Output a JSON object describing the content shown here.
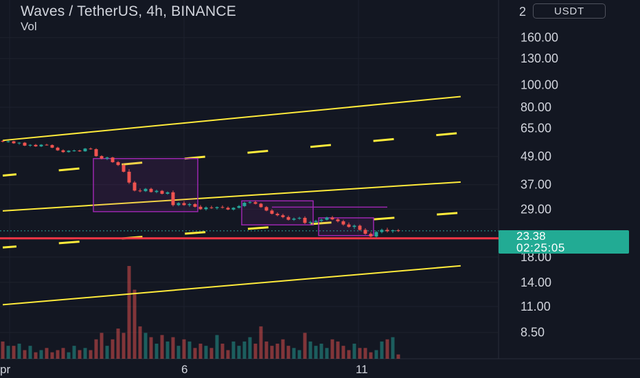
{
  "header": {
    "title": "Waves / TetherUS, 4h, BINANCE",
    "vol_label": "Vol",
    "corner_digit": "2"
  },
  "currency_button": "USDT",
  "price_tag": {
    "price": "23.38",
    "countdown": "02:25:05"
  },
  "colors": {
    "background": "#131722",
    "up": "#26a69a",
    "down": "#ef5350",
    "channel": "#ffeb3b",
    "box": "#9c27b0",
    "support": "#f23645"
  },
  "chart_data": {
    "type": "candlestick",
    "scale": "log",
    "ylim": [
      7.5,
      210
    ],
    "y_ticks": [
      "160.00",
      "130.00",
      "100.00",
      "80.00",
      "65.00",
      "49.00",
      "37.00",
      "29.00",
      "18.00",
      "14.00",
      "11.00",
      "8.50"
    ],
    "y_tick_values": [
      160,
      130,
      100,
      80,
      65,
      49,
      37,
      29,
      18,
      14,
      11,
      8.5
    ],
    "x_ticks": [
      "pr",
      "6",
      "11"
    ],
    "last_price": 23.38,
    "support_level": 21.7,
    "current_price_line": 23.38,
    "candles_ohlc": [
      [
        57.2,
        57.6,
        56.4,
        56.8
      ],
      [
        56.8,
        57.4,
        56.2,
        57.0
      ],
      [
        57.0,
        57.3,
        55.6,
        55.9
      ],
      [
        55.9,
        56.5,
        55.1,
        56.2
      ],
      [
        56.2,
        56.6,
        54.3,
        54.6
      ],
      [
        54.6,
        55.4,
        54.0,
        55.0
      ],
      [
        55.0,
        55.5,
        53.9,
        54.2
      ],
      [
        54.2,
        55.4,
        53.8,
        55.1
      ],
      [
        55.1,
        55.6,
        54.6,
        54.9
      ],
      [
        54.9,
        55.3,
        53.2,
        53.5
      ],
      [
        53.5,
        54.0,
        51.8,
        52.1
      ],
      [
        52.1,
        52.6,
        50.8,
        51.2
      ],
      [
        51.2,
        52.2,
        50.9,
        51.9
      ],
      [
        51.9,
        52.5,
        51.4,
        52.0
      ],
      [
        52.0,
        52.4,
        51.3,
        51.6
      ],
      [
        51.6,
        53.3,
        51.4,
        53.0
      ],
      [
        53.0,
        53.6,
        52.4,
        52.7
      ],
      [
        52.7,
        53.2,
        48.8,
        49.2
      ],
      [
        49.2,
        49.6,
        47.6,
        48.0
      ],
      [
        48.0,
        48.9,
        47.3,
        48.5
      ],
      [
        48.5,
        48.8,
        46.0,
        46.3
      ],
      [
        46.3,
        46.8,
        44.6,
        45.0
      ],
      [
        45.0,
        45.6,
        41.8,
        42.1
      ],
      [
        42.1,
        43.2,
        37.3,
        37.8
      ],
      [
        37.8,
        38.4,
        34.6,
        34.9
      ],
      [
        34.9,
        35.6,
        34.3,
        34.7
      ],
      [
        34.7,
        35.8,
        34.4,
        35.5
      ],
      [
        35.5,
        35.9,
        34.2,
        34.4
      ],
      [
        34.4,
        35.2,
        34.0,
        34.8
      ],
      [
        34.8,
        35.1,
        33.6,
        33.8
      ],
      [
        33.8,
        34.6,
        33.5,
        34.3
      ],
      [
        34.3,
        34.9,
        29.8,
        30.2
      ],
      [
        30.2,
        31.1,
        29.9,
        30.8
      ],
      [
        30.8,
        31.4,
        30.0,
        30.2
      ],
      [
        30.2,
        30.9,
        29.7,
        30.5
      ],
      [
        30.5,
        30.8,
        29.5,
        29.7
      ],
      [
        29.7,
        30.2,
        28.8,
        29.0
      ],
      [
        29.0,
        29.8,
        28.6,
        29.5
      ],
      [
        29.5,
        30.0,
        29.1,
        29.3
      ],
      [
        29.3,
        29.8,
        28.9,
        29.6
      ],
      [
        29.6,
        30.1,
        29.2,
        29.4
      ],
      [
        29.4,
        29.8,
        28.7,
        28.9
      ],
      [
        28.9,
        29.6,
        28.6,
        29.4
      ],
      [
        29.4,
        30.2,
        29.2,
        29.9
      ],
      [
        29.9,
        31.2,
        29.6,
        30.9
      ],
      [
        30.9,
        31.5,
        30.6,
        31.1
      ],
      [
        31.1,
        31.6,
        30.4,
        30.6
      ],
      [
        30.6,
        30.9,
        29.4,
        29.6
      ],
      [
        29.6,
        29.9,
        28.4,
        28.6
      ],
      [
        28.6,
        29.0,
        27.5,
        27.7
      ],
      [
        27.7,
        28.1,
        27.0,
        27.3
      ],
      [
        27.3,
        27.7,
        26.5,
        26.8
      ],
      [
        26.8,
        27.2,
        25.9,
        26.1
      ],
      [
        26.1,
        26.7,
        25.8,
        26.4
      ],
      [
        26.4,
        26.9,
        26.1,
        26.6
      ],
      [
        26.6,
        27.0,
        25.0,
        25.3
      ],
      [
        25.3,
        25.8,
        24.9,
        25.5
      ],
      [
        25.5,
        26.1,
        25.2,
        25.8
      ],
      [
        25.8,
        26.4,
        25.5,
        26.1
      ],
      [
        26.1,
        26.9,
        25.9,
        26.7
      ],
      [
        26.7,
        27.1,
        26.0,
        26.2
      ],
      [
        26.2,
        26.6,
        25.4,
        25.7
      ],
      [
        25.7,
        26.1,
        24.6,
        24.9
      ],
      [
        24.9,
        25.4,
        24.1,
        24.3
      ],
      [
        24.3,
        24.9,
        23.8,
        24.6
      ],
      [
        24.6,
        24.9,
        23.4,
        23.6
      ],
      [
        23.6,
        24.0,
        22.5,
        22.7
      ],
      [
        22.7,
        23.1,
        21.9,
        22.1
      ],
      [
        22.1,
        23.4,
        21.8,
        23.1
      ],
      [
        23.1,
        23.9,
        22.8,
        23.6
      ],
      [
        23.6,
        24.1,
        23.0,
        23.3
      ],
      [
        23.3,
        23.7,
        22.9,
        23.5
      ],
      [
        23.5,
        23.8,
        23.1,
        23.38
      ]
    ],
    "volume": [
      8,
      6,
      6,
      7,
      4,
      6,
      3,
      4,
      5,
      3,
      4,
      5,
      3,
      6,
      4,
      5,
      4,
      9,
      12,
      6,
      9,
      14,
      12,
      43,
      32,
      15,
      12,
      10,
      7,
      11,
      8,
      10,
      6,
      9,
      8,
      5,
      7,
      6,
      5,
      11,
      7,
      4,
      8,
      6,
      8,
      10,
      7,
      15,
      8,
      6,
      7,
      9,
      6,
      5,
      4,
      12,
      8,
      6,
      7,
      5,
      9,
      8,
      6,
      4,
      7,
      5,
      5,
      3,
      4,
      8,
      9,
      10,
      2
    ],
    "drawings": {
      "channel_lines": [
        {
          "style": "solid",
          "from": [
            "2024-04-01",
            57.5
          ],
          "to": [
            "2024-04-14",
            89
          ]
        },
        {
          "style": "dashed",
          "from": [
            "2024-04-01",
            40.5
          ],
          "to": [
            "2024-04-14",
            62
          ]
        },
        {
          "style": "solid",
          "from": [
            "2024-04-01",
            28.5
          ],
          "to": [
            "2024-04-14",
            38
          ]
        },
        {
          "style": "dashed",
          "from": [
            "2024-04-01",
            19.8
          ],
          "to": [
            "2024-04-14",
            28
          ]
        },
        {
          "style": "solid",
          "from": [
            "2024-04-01",
            11.2
          ],
          "to": [
            "2024-04-14",
            16.5
          ]
        }
      ],
      "boxes": [
        {
          "from_bar": 17,
          "to_bar": 35,
          "top": 48,
          "bottom": 28.3
        },
        {
          "from_bar": 44,
          "to_bar": 56,
          "top": 31.5,
          "bottom": 24.8
        },
        {
          "from_bar": 58,
          "to_bar": 67,
          "top": 26.6,
          "bottom": 22.3
        }
      ],
      "resistance_segment": {
        "from_bar": 49,
        "to_bar": 70,
        "price": 29.6
      }
    }
  }
}
